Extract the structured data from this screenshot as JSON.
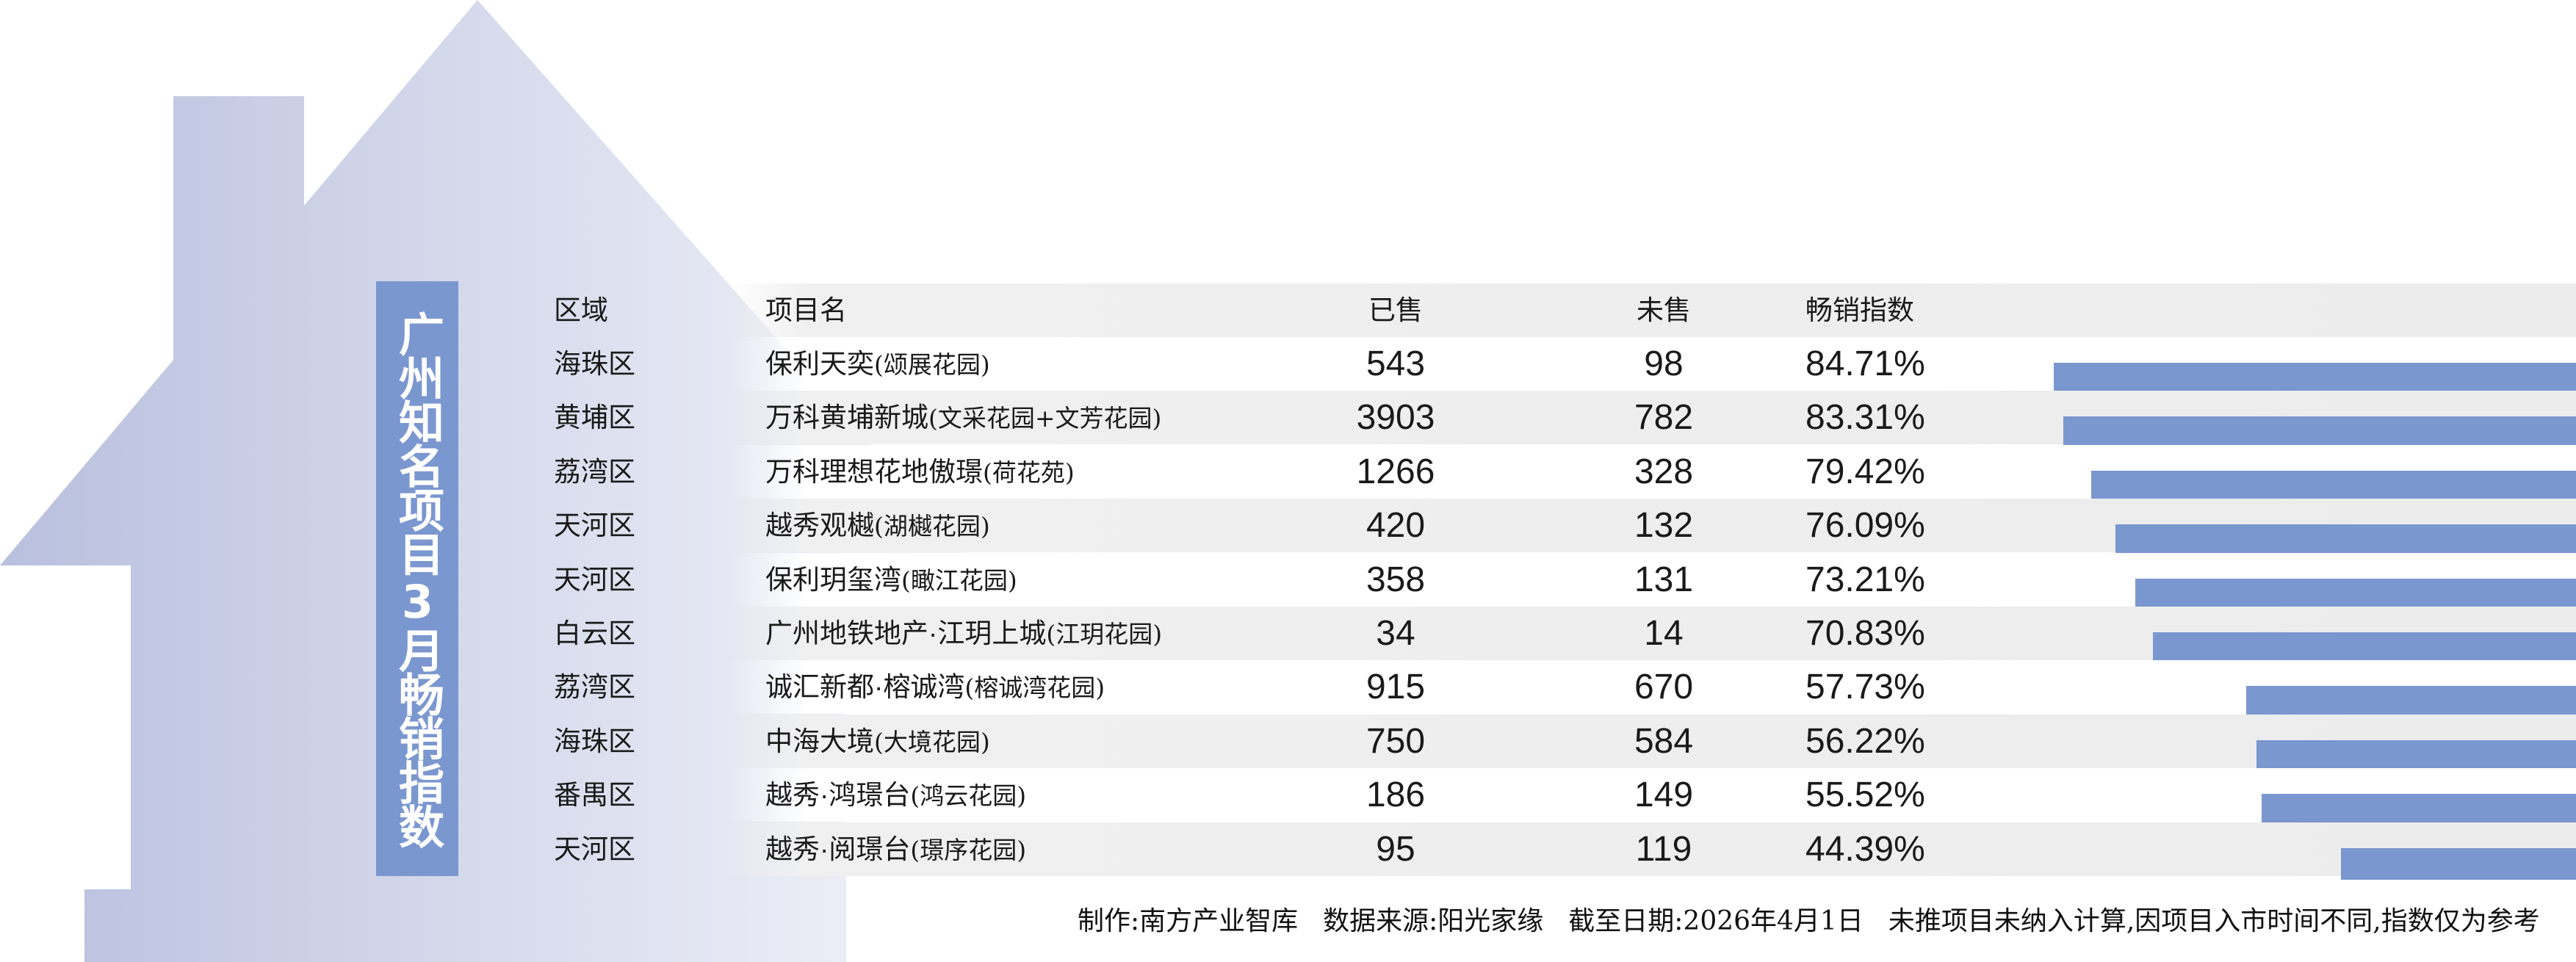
{
  "title": "广州知名项目3月畅销指数",
  "colors": {
    "accent": "#7b97cf",
    "house_left": "#b9c0de",
    "house_right": "#f4f5fa",
    "stripe": "#eeeeee"
  },
  "table": {
    "headers": {
      "region": "区域",
      "name": "项目名",
      "sold": "已售",
      "unsold": "未售",
      "index": "畅销指数"
    },
    "rows": [
      {
        "region": "海珠区",
        "name": "保利天奕",
        "alias": "(颂展花园)",
        "sold": "543",
        "unsold": "98",
        "index": "84.71%",
        "index_value": 84.71
      },
      {
        "region": "黄埔区",
        "name": "万科黄埔新城",
        "alias": "(文采花园+文芳花园)",
        "sold": "3903",
        "unsold": "782",
        "index": "83.31%",
        "index_value": 83.31
      },
      {
        "region": "荔湾区",
        "name": "万科理想花地傲璟",
        "alias": "(荷花苑)",
        "sold": "1266",
        "unsold": "328",
        "index": "79.42%",
        "index_value": 79.42
      },
      {
        "region": "天河区",
        "name": "越秀观樾",
        "alias": "(湖樾花园)",
        "sold": "420",
        "unsold": "132",
        "index": "76.09%",
        "index_value": 76.09
      },
      {
        "region": "天河区",
        "name": "保利玥玺湾",
        "alias": "(瞰江花园)",
        "sold": "358",
        "unsold": "131",
        "index": "73.21%",
        "index_value": 73.21
      },
      {
        "region": "白云区",
        "name": "广州地铁地产·江玥上城",
        "alias": "(江玥花园)",
        "sold": "34",
        "unsold": "14",
        "index": "70.83%",
        "index_value": 70.83
      },
      {
        "region": "荔湾区",
        "name": "诚汇新都·榕诚湾",
        "alias": "(榕诚湾花园)",
        "sold": "915",
        "unsold": "670",
        "index": "57.73%",
        "index_value": 57.73
      },
      {
        "region": "海珠区",
        "name": "中海大境",
        "alias": "(大境花园)",
        "sold": "750",
        "unsold": "584",
        "index": "56.22%",
        "index_value": 56.22
      },
      {
        "region": "番禺区",
        "name": "越秀·鸿璟台",
        "alias": "(鸿云花园)",
        "sold": "186",
        "unsold": "149",
        "index": "55.52%",
        "index_value": 55.52
      },
      {
        "region": "天河区",
        "name": "越秀·阅璟台",
        "alias": "(璟序花园)",
        "sold": "95",
        "unsold": "119",
        "index": "44.39%",
        "index_value": 44.39
      }
    ]
  },
  "footer": {
    "producer": "制作:南方产业智库",
    "source": "数据来源:阳光家缘",
    "date": "截至日期:2026年4月1日",
    "note": "未推项目未纳入计算,因项目入市时间不同,指数仅为参考"
  }
}
